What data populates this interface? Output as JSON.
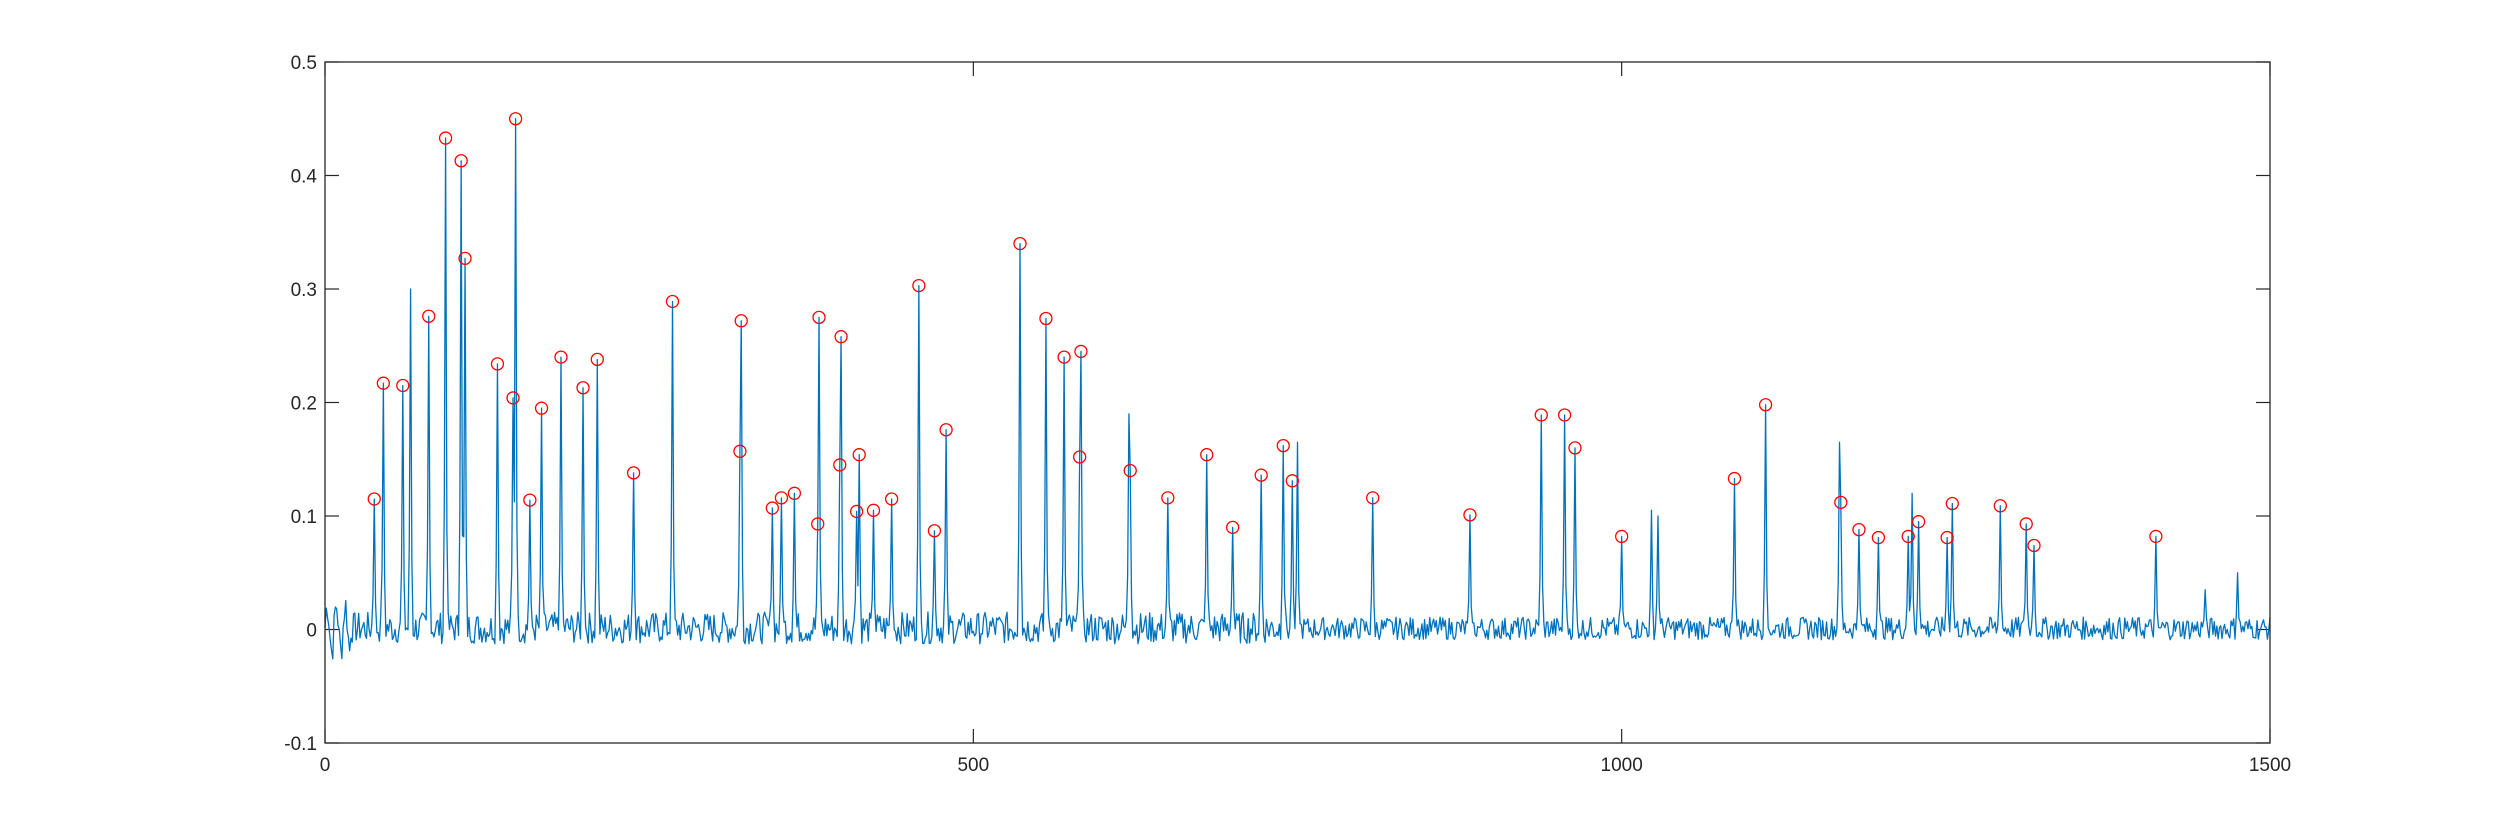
{
  "chart_data": {
    "type": "line",
    "title": "",
    "xlabel": "",
    "ylabel": "",
    "xlim": [
      0,
      1500
    ],
    "ylim": [
      -0.1,
      0.5
    ],
    "xticks": [
      0,
      500,
      1000,
      1500
    ],
    "yticks": [
      -0.1,
      0,
      0.1,
      0.2,
      0.3,
      0.4,
      0.5
    ],
    "xtick_labels": [
      "0",
      "500",
      "1000",
      "1500"
    ],
    "ytick_labels": [
      "-0.1",
      "0",
      "0.1",
      "0.2",
      "0.3",
      "0.4",
      "0.5"
    ],
    "grid": false,
    "legend": "none",
    "colors": {
      "line": "#0072BD",
      "marker": "#FF0000",
      "axes": "#262626"
    },
    "baseline_noise_amplitude": 0.01,
    "series": [
      {
        "type": "line",
        "peaks": [
          [
            38,
            0.115
          ],
          [
            45,
            0.217
          ],
          [
            60,
            0.215
          ],
          [
            66,
            0.3
          ],
          [
            80,
            0.276
          ],
          [
            93,
            0.433
          ],
          [
            105,
            0.413
          ],
          [
            108,
            0.327
          ],
          [
            133,
            0.234
          ],
          [
            145,
            0.204
          ],
          [
            147,
            0.45
          ],
          [
            158,
            0.114
          ],
          [
            167,
            0.195
          ],
          [
            182,
            0.24
          ],
          [
            199,
            0.213
          ],
          [
            210,
            0.238
          ],
          [
            238,
            0.138
          ],
          [
            268,
            0.289
          ],
          [
            320,
            0.157
          ],
          [
            321,
            0.272
          ],
          [
            345,
            0.107
          ],
          [
            352,
            0.116
          ],
          [
            362,
            0.12
          ],
          [
            380,
            0.093
          ],
          [
            381,
            0.275
          ],
          [
            397,
            0.145
          ],
          [
            398,
            0.258
          ],
          [
            410,
            0.104
          ],
          [
            412,
            0.154
          ],
          [
            423,
            0.105
          ],
          [
            437,
            0.115
          ],
          [
            458,
            0.303
          ],
          [
            470,
            0.087
          ],
          [
            479,
            0.176
          ],
          [
            536,
            0.34
          ],
          [
            556,
            0.274
          ],
          [
            570,
            0.24
          ],
          [
            582,
            0.152
          ],
          [
            583,
            0.245
          ],
          [
            620,
            0.19
          ],
          [
            621,
            0.14
          ],
          [
            650,
            0.116
          ],
          [
            680,
            0.154
          ],
          [
            700,
            0.09
          ],
          [
            722,
            0.136
          ],
          [
            739,
            0.162
          ],
          [
            746,
            0.131
          ],
          [
            750,
            0.165
          ],
          [
            808,
            0.116
          ],
          [
            883,
            0.101
          ],
          [
            938,
            0.189
          ],
          [
            956,
            0.189
          ],
          [
            964,
            0.16
          ],
          [
            1000,
            0.082
          ],
          [
            1023,
            0.105
          ],
          [
            1028,
            0.1
          ],
          [
            1087,
            0.133
          ],
          [
            1111,
            0.198
          ],
          [
            1168,
            0.165
          ],
          [
            1169,
            0.112
          ],
          [
            1183,
            0.088
          ],
          [
            1198,
            0.081
          ],
          [
            1221,
            0.082
          ],
          [
            1224,
            0.12
          ],
          [
            1229,
            0.095
          ],
          [
            1251,
            0.081
          ],
          [
            1255,
            0.111
          ],
          [
            1292,
            0.109
          ],
          [
            1312,
            0.093
          ],
          [
            1318,
            0.074
          ],
          [
            1412,
            0.082
          ],
          [
            1475,
            0.05
          ],
          [
            1450,
            0.035
          ]
        ]
      },
      {
        "type": "scatter",
        "marker": "o",
        "points": [
          [
            38,
            0.115
          ],
          [
            45,
            0.217
          ],
          [
            60,
            0.215
          ],
          [
            80,
            0.276
          ],
          [
            93,
            0.433
          ],
          [
            105,
            0.413
          ],
          [
            108,
            0.327
          ],
          [
            133,
            0.234
          ],
          [
            145,
            0.204
          ],
          [
            147,
            0.45
          ],
          [
            158,
            0.114
          ],
          [
            167,
            0.195
          ],
          [
            182,
            0.24
          ],
          [
            199,
            0.213
          ],
          [
            210,
            0.238
          ],
          [
            238,
            0.138
          ],
          [
            268,
            0.289
          ],
          [
            320,
            0.157
          ],
          [
            321,
            0.272
          ],
          [
            345,
            0.107
          ],
          [
            352,
            0.116
          ],
          [
            362,
            0.12
          ],
          [
            380,
            0.093
          ],
          [
            381,
            0.275
          ],
          [
            397,
            0.145
          ],
          [
            398,
            0.258
          ],
          [
            410,
            0.104
          ],
          [
            412,
            0.154
          ],
          [
            423,
            0.105
          ],
          [
            437,
            0.115
          ],
          [
            458,
            0.303
          ],
          [
            470,
            0.087
          ],
          [
            479,
            0.176
          ],
          [
            536,
            0.34
          ],
          [
            556,
            0.274
          ],
          [
            570,
            0.24
          ],
          [
            582,
            0.152
          ],
          [
            583,
            0.245
          ],
          [
            621,
            0.14
          ],
          [
            650,
            0.116
          ],
          [
            680,
            0.154
          ],
          [
            700,
            0.09
          ],
          [
            722,
            0.136
          ],
          [
            739,
            0.162
          ],
          [
            746,
            0.131
          ],
          [
            808,
            0.116
          ],
          [
            883,
            0.101
          ],
          [
            938,
            0.189
          ],
          [
            956,
            0.189
          ],
          [
            964,
            0.16
          ],
          [
            1000,
            0.082
          ],
          [
            1087,
            0.133
          ],
          [
            1111,
            0.198
          ],
          [
            1169,
            0.112
          ],
          [
            1183,
            0.088
          ],
          [
            1198,
            0.081
          ],
          [
            1221,
            0.082
          ],
          [
            1229,
            0.095
          ],
          [
            1251,
            0.081
          ],
          [
            1255,
            0.111
          ],
          [
            1292,
            0.109
          ],
          [
            1312,
            0.093
          ],
          [
            1318,
            0.074
          ],
          [
            1412,
            0.082
          ]
        ]
      }
    ]
  }
}
